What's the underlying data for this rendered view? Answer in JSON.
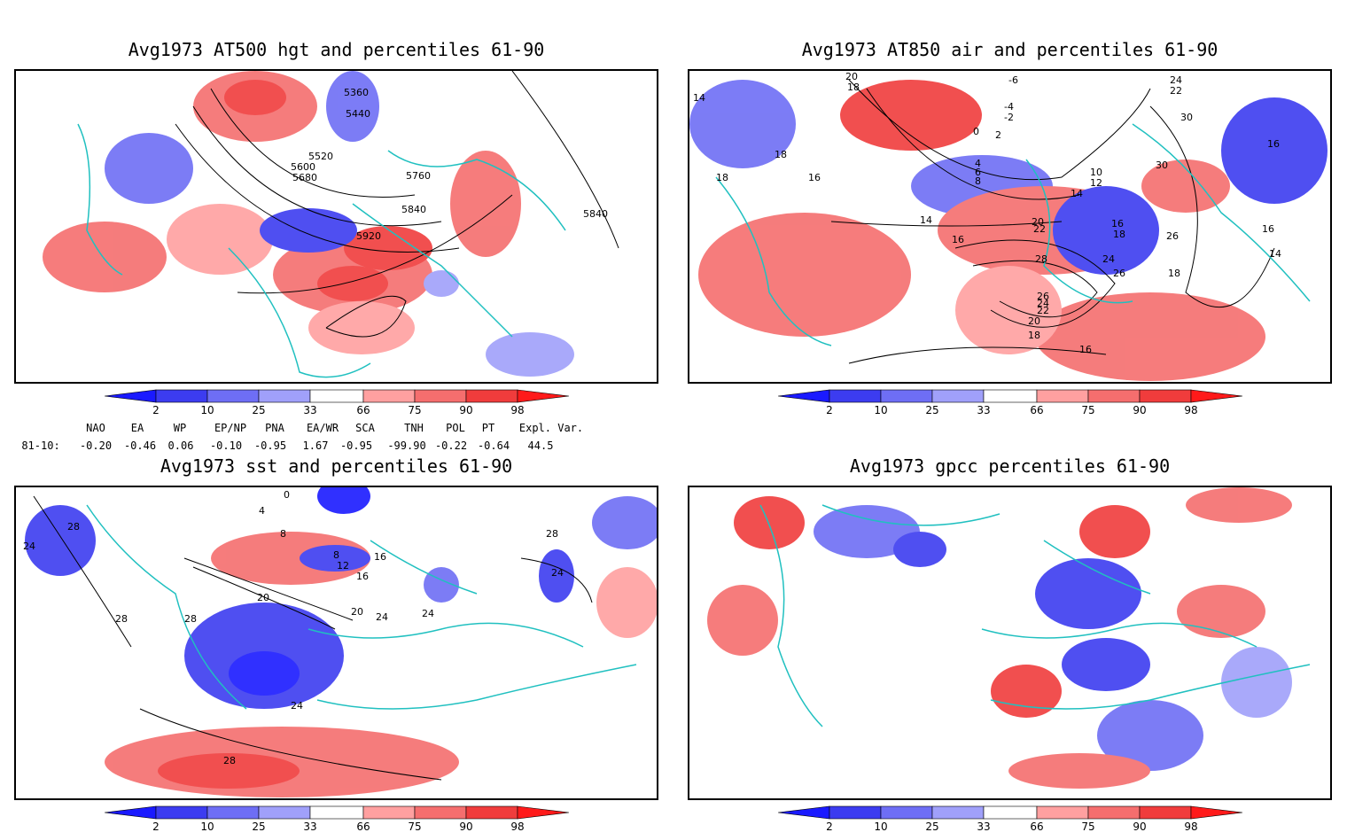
{
  "panels": [
    {
      "title": "Avg1973 AT500 hgt and percentiles 61-90",
      "contour_labels": [
        "5360",
        "5440",
        "5520",
        "5600",
        "5680",
        "5760",
        "5840",
        "5840",
        "5920"
      ]
    },
    {
      "title": "Avg1973 AT850 air and percentiles 61-90",
      "contour_labels": [
        "14",
        "20",
        "18",
        "-6",
        "-4",
        "-2",
        "0",
        "2",
        "4",
        "6",
        "8",
        "18",
        "18",
        "16",
        "10",
        "12",
        "14",
        "14",
        "16",
        "20",
        "22",
        "16",
        "18",
        "24",
        "26",
        "28",
        "26",
        "24",
        "22",
        "20",
        "18",
        "16",
        "26",
        "18",
        "16",
        "14",
        "24",
        "22",
        "30",
        "30",
        "16"
      ]
    },
    {
      "title": "Avg1973 sst and percentiles 61-90",
      "contour_labels": [
        "24",
        "28",
        "28",
        "0",
        "4",
        "8",
        "8",
        "12",
        "16",
        "16",
        "20",
        "20",
        "24",
        "24",
        "24",
        "28",
        "28",
        "28",
        "24"
      ]
    },
    {
      "title": "Avg1973 gpcc percentiles 61-90",
      "contour_labels": []
    }
  ],
  "colorbar": {
    "labels": [
      "2",
      "10",
      "25",
      "33",
      "66",
      "75",
      "90",
      "98"
    ],
    "colors": [
      "#1a1aff",
      "#3c3cf0",
      "#6e6ef5",
      "#a0a0fa",
      "#ffffff",
      "#ffa0a0",
      "#f56e6e",
      "#f03c3c",
      "#ff1a1a"
    ]
  },
  "indices": {
    "headers": [
      "NAO",
      "EA",
      "WP",
      "EP/NP",
      "PNA",
      "EA/WR",
      "SCA",
      "TNH",
      "POL",
      "PT",
      "Expl. Var."
    ],
    "row_label": "81-10:",
    "values": [
      "-0.20",
      "-0.46",
      "0.06",
      "-0.10",
      "-0.95",
      "1.67",
      "-0.95",
      "-99.90",
      "-0.22",
      "-0.64",
      "44.5"
    ]
  },
  "style": {
    "coast_color": "#20c0c0",
    "warm": "#f03c3c",
    "cold": "#3c3cf0"
  }
}
